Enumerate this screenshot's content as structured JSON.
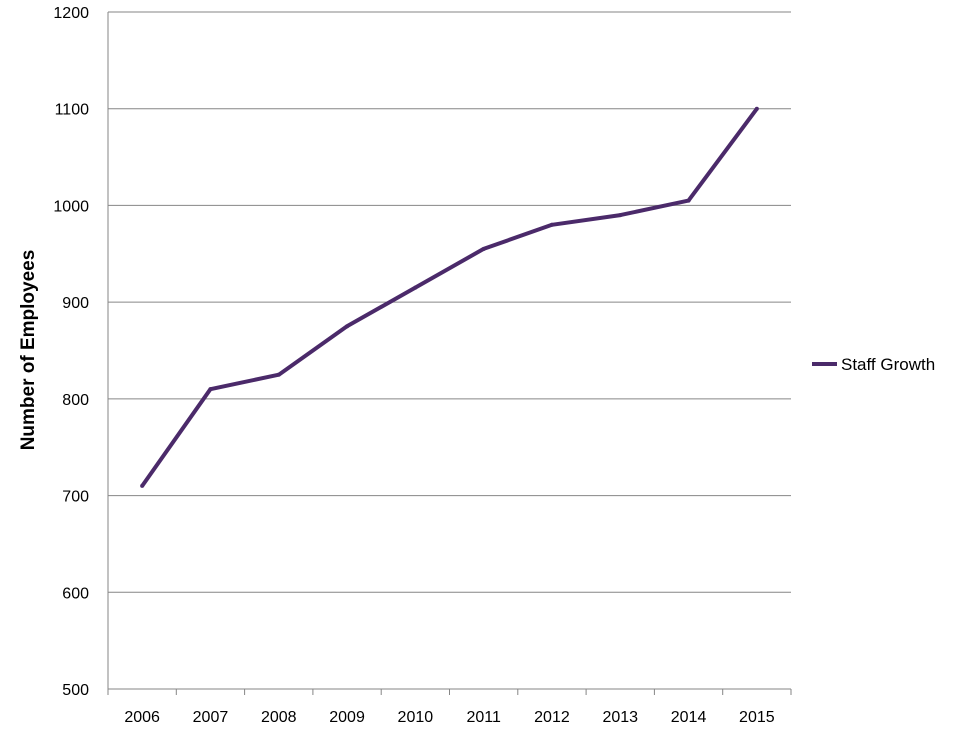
{
  "chart_data": {
    "type": "line",
    "title": "",
    "xlabel": "",
    "ylabel": "Number of Employees",
    "categories": [
      "2006",
      "2007",
      "2008",
      "2009",
      "2010",
      "2011",
      "2012",
      "2013",
      "2014",
      "2015"
    ],
    "series": [
      {
        "name": "Staff Growth",
        "values": [
          710,
          810,
          825,
          875,
          915,
          955,
          980,
          990,
          1005,
          1100
        ],
        "color": "#4b2a6a"
      }
    ],
    "ylim": [
      500,
      1200
    ],
    "yticks": [
      "500",
      "600",
      "700",
      "800",
      "900",
      "1000",
      "1100",
      "1200"
    ],
    "grid": "horizontal",
    "legend_position": "right"
  }
}
